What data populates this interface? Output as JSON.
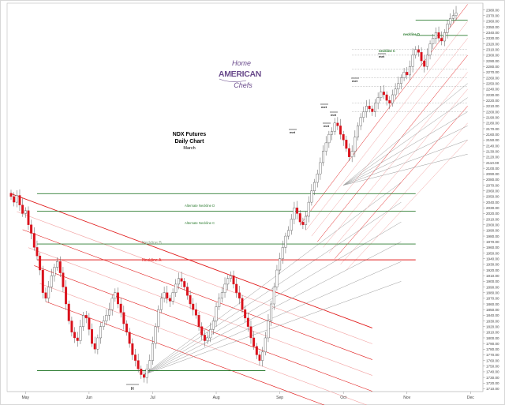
{
  "colors": {
    "bull": "#ffffff",
    "bear": "#d9111b",
    "wick": "#555555",
    "channel_red": "#e11a1a",
    "channel_pink": "#f2a0a0",
    "neckline_green": "#2e7d32",
    "fan_gray": "#9a9a9a",
    "logo": "#6a4b8c"
  },
  "chart_title": {
    "line1": "NDX  Futures",
    "line2": "Daily Chart",
    "line3": "March"
  },
  "logo": {
    "top": "Home",
    "middle": "AMERICAN",
    "bottom": "Chefs"
  },
  "labels": {
    "neckline_a": "Neckline  A",
    "neckline_b": "Neckline  B",
    "neckline_c": "neckline  C",
    "neckline_d": "neckline  D",
    "alt_neckline_c": "Alternate Neckline  C",
    "alt_neckline_d": "Alternate Neckline  D",
    "met": "met",
    "h": "H"
  },
  "chart_data": {
    "type": "candlestick",
    "title": "NDX  Futures",
    "subtitle": "Daily Chart",
    "note": "March",
    "x_labels": [
      "May",
      "Jun",
      "Jul",
      "Aug",
      "Sep",
      "Oct",
      "Nov",
      "Dec"
    ],
    "y_ticks": [
      "2390.00",
      "2380.00",
      "2370.00",
      "2360.00",
      "2350.00",
      "2340.00",
      "2330.00",
      "2320.00",
      "2310.00",
      "2300.00",
      "2290.00",
      "2280.00",
      "2270.00",
      "2260.00",
      "2250.00",
      "2240.00",
      "2230.00",
      "2220.00",
      "2210.00",
      "2200.00",
      "2190.00",
      "2180.00",
      "2170.00",
      "2160.00",
      "2150.00",
      "2140.00",
      "2130.00",
      "2120.00",
      "2110.00",
      "2100.00",
      "2090.00",
      "2080.00",
      "2070.00",
      "2060.00",
      "2050.00",
      "2040.00",
      "2030.00",
      "2020.00",
      "2010.00",
      "2000.00",
      "1990.00",
      "1980.00",
      "1970.00",
      "1960.00",
      "1950.00",
      "1940.00",
      "1930.00",
      "1920.00",
      "1910.00",
      "1900.00",
      "1890.00",
      "1880.00",
      "1870.00",
      "1860.00",
      "1850.00",
      "1840.00",
      "1830.00",
      "1820.00",
      "1810.00",
      "1800.00",
      "1790.00",
      "1780.00",
      "1770.00",
      "1760.00",
      "1750.00",
      "1740.00",
      "1730.00",
      "1720.00",
      "1710.00"
    ],
    "ylim": [
      1705,
      2392
    ],
    "x_range": [
      0,
      160
    ],
    "month_positions": {
      "May": 5,
      "Jun": 27,
      "Jul": 49,
      "Aug": 71,
      "Sep": 93,
      "Oct": 115,
      "Nov": 137,
      "Dec": 159
    },
    "candles_close": [
      2050,
      2040,
      2052,
      2035,
      2020,
      2025,
      2000,
      1985,
      1960,
      1945,
      1920,
      1880,
      1870,
      1890,
      1910,
      1925,
      1935,
      1915,
      1890,
      1860,
      1830,
      1810,
      1800,
      1795,
      1820,
      1840,
      1835,
      1815,
      1790,
      1780,
      1800,
      1820,
      1830,
      1840,
      1850,
      1870,
      1880,
      1860,
      1845,
      1825,
      1810,
      1790,
      1770,
      1760,
      1745,
      1735,
      1730,
      1745,
      1760,
      1790,
      1820,
      1850,
      1870,
      1880,
      1870,
      1865,
      1880,
      1895,
      1905,
      1900,
      1890,
      1875,
      1860,
      1850,
      1840,
      1820,
      1805,
      1795,
      1800,
      1815,
      1830,
      1855,
      1870,
      1880,
      1895,
      1905,
      1910,
      1895,
      1880,
      1870,
      1850,
      1835,
      1820,
      1800,
      1785,
      1770,
      1760,
      1775,
      1800,
      1830,
      1860,
      1890,
      1920,
      1940,
      1960,
      1980,
      1990,
      2010,
      2030,
      2020,
      2005,
      2000,
      2015,
      2040,
      2060,
      2075,
      2090,
      2110,
      2130,
      2145,
      2160,
      2165,
      2180,
      2175,
      2160,
      2150,
      2135,
      2120,
      2130,
      2155,
      2175,
      2190,
      2200,
      2210,
      2205,
      2200,
      2215,
      2225,
      2235,
      2230,
      2220,
      2215,
      2230,
      2240,
      2250,
      2260,
      2270,
      2265,
      2280,
      2300,
      2310,
      2305,
      2290,
      2280,
      2300,
      2320,
      2330,
      2340,
      2330,
      2325,
      2340,
      2355,
      2365,
      2370,
      2375
    ],
    "necklines": [
      {
        "name": "Neckline  A",
        "y": 1938
      },
      {
        "name": "Neckline  B",
        "y": 1966
      },
      {
        "name": "Alternate Neckline  C",
        "y": 2024
      },
      {
        "name": "Alternate Neckline  D",
        "y": 2055
      },
      {
        "name": "neckline  C",
        "y": 2335
      },
      {
        "name": "neckline  D",
        "y": 2362
      }
    ],
    "grid": false,
    "legend": "none"
  }
}
